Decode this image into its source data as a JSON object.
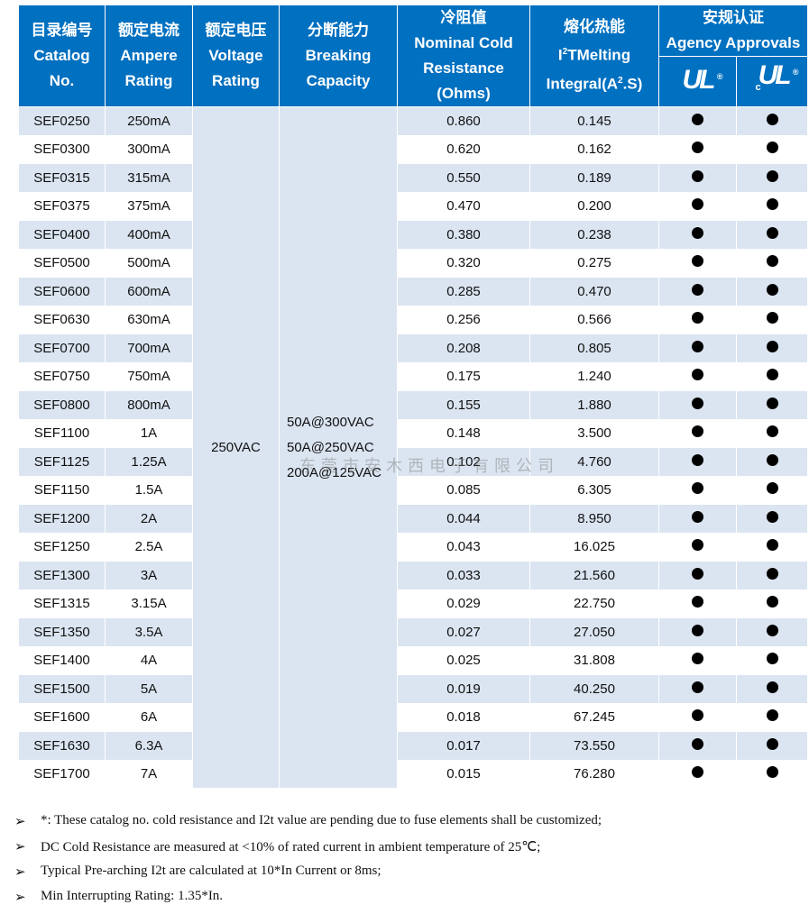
{
  "header": {
    "catalog": [
      "目录编号",
      "Catalog",
      "No."
    ],
    "ampere": [
      "额定电流",
      "Ampere",
      "Rating"
    ],
    "voltage": [
      "额定电压",
      "Voltage",
      "Rating"
    ],
    "breaking": [
      "分断能力",
      "Breaking",
      "Capacity"
    ],
    "resistance": [
      "冷阻值",
      "Nominal Cold",
      "Resistance",
      "(Ohms)"
    ],
    "melting": {
      "cn": "熔化热能",
      "l1a": "I",
      "l1sup": "2",
      "l1b": "TMelting",
      "l2a": "Integral(A",
      "l2sup": "2",
      "l2b": ".S)"
    },
    "agency": [
      "安规认证",
      "Agency Approvals"
    ],
    "logos": [
      {
        "text": "UL",
        "prefix": "",
        "mark": "®",
        "icon": "ul-recognized-icon"
      },
      {
        "text": "UL",
        "prefix": "c",
        "mark": "®",
        "icon": "cul-recognized-icon"
      }
    ]
  },
  "voltage_rating": "250VAC",
  "breaking_capacity": [
    "50A@300VAC",
    "50A@250VAC",
    "200A@125VAC"
  ],
  "rows": [
    [
      "SEF0250",
      "250mA",
      "0.860",
      "0.145"
    ],
    [
      "SEF0300",
      "300mA",
      "0.620",
      "0.162"
    ],
    [
      "SEF0315",
      "315mA",
      "0.550",
      "0.189"
    ],
    [
      "SEF0375",
      "375mA",
      "0.470",
      "0.200"
    ],
    [
      "SEF0400",
      "400mA",
      "0.380",
      "0.238"
    ],
    [
      "SEF0500",
      "500mA",
      "0.320",
      "0.275"
    ],
    [
      "SEF0600",
      "600mA",
      "0.285",
      "0.470"
    ],
    [
      "SEF0630",
      "630mA",
      "0.256",
      "0.566"
    ],
    [
      "SEF0700",
      "700mA",
      "0.208",
      "0.805"
    ],
    [
      "SEF0750",
      "750mA",
      "0.175",
      "1.240"
    ],
    [
      "SEF0800",
      "800mA",
      "0.155",
      "1.880"
    ],
    [
      "SEF1100",
      "1A",
      "0.148",
      "3.500"
    ],
    [
      "SEF1125",
      "1.25A",
      "0.102",
      "4.760"
    ],
    [
      "SEF1150",
      "1.5A",
      "0.085",
      "6.305"
    ],
    [
      "SEF1200",
      "2A",
      "0.044",
      "8.950"
    ],
    [
      "SEF1250",
      "2.5A",
      "0.043",
      "16.025"
    ],
    [
      "SEF1300",
      "3A",
      "0.033",
      "21.560"
    ],
    [
      "SEF1315",
      "3.15A",
      "0.029",
      "22.750"
    ],
    [
      "SEF1350",
      "3.5A",
      "0.027",
      "27.050"
    ],
    [
      "SEF1400",
      "4A",
      "0.025",
      "31.808"
    ],
    [
      "SEF1500",
      "5A",
      "0.019",
      "40.250"
    ],
    [
      "SEF1600",
      "6A",
      "0.018",
      "67.245"
    ],
    [
      "SEF1630",
      "6.3A",
      "0.017",
      "73.550"
    ],
    [
      "SEF1700",
      "7A",
      "0.015",
      "76.280"
    ]
  ],
  "approval_mark": "●",
  "notes": [
    "*: These catalog no. cold resistance and I2t value are pending due to fuse elements shall be customized;",
    "DC Cold Resistance are measured at <10% of rated current in ambient temperature of 25℃;",
    "Typical Pre-arching I2t are calculated at 10*In Current or 8ms;",
    "Min Interrupting Rating: 1.35*In."
  ],
  "note_bullet": "➢",
  "watermark": "东莞市安木西电子有限公司",
  "colors": {
    "header": "#0070c0",
    "shade": "#dbe5f1"
  }
}
